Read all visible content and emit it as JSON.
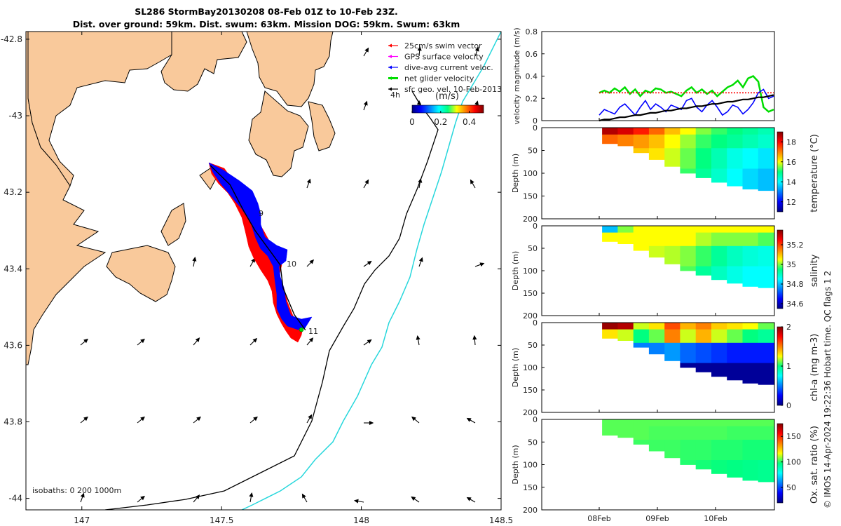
{
  "title_line1": "SL286 StormBay20130208 08-Feb 01Z to 10-Feb 23Z.",
  "title_line2": "Dist. over ground: 59km. Dist. swum: 63km. Mission DOG: 59km. Swum: 63km",
  "credit": "© IMOS 14-Apr-2024 19:22:36 Hobart time. QC flags 1  2",
  "chart_data": [
    {
      "type": "scatter",
      "name": "map",
      "xlim": [
        146.8,
        148.5
      ],
      "ylim": [
        -44.03,
        -42.78
      ],
      "x_ticks": [
        147,
        147.5,
        148,
        148.5
      ],
      "x_tick_labels": [
        "147",
        "147.5",
        "148",
        "148.5"
      ],
      "y_ticks": [
        -42.8,
        -43,
        -43.2,
        -43.4,
        -43.6,
        -43.8,
        -44
      ],
      "y_tick_labels": [
        "-42.8",
        "-43",
        "43.2",
        "43.4",
        "43.6",
        "43.8",
        "-44"
      ],
      "legend": [
        {
          "label": "25cm/s swim vector",
          "color": "#ff0000"
        },
        {
          "label": "GPS surface velocity",
          "color": "#ff00ff"
        },
        {
          "label": "dive-avg current veloc.",
          "color": "#0000ff"
        },
        {
          "label": "net glider velocity",
          "color": "#00dd00"
        },
        {
          "label": "sfc geo. vel. 10-Feb-2013",
          "color": "#000000"
        }
      ],
      "legend_position": "top-right",
      "scale_label": "4h",
      "colorbar": {
        "label": "(m/s)",
        "ticks": [
          "0",
          "0.2",
          "0.4"
        ],
        "range": [
          0,
          0.5
        ]
      },
      "day_labels": [
        "9",
        "10",
        "11"
      ],
      "track_lonlat": [
        [
          147.46,
          -43.13
        ],
        [
          147.53,
          -43.18
        ],
        [
          147.58,
          -43.25
        ],
        [
          147.62,
          -43.3
        ],
        [
          147.67,
          -43.35
        ],
        [
          147.71,
          -43.39
        ],
        [
          147.72,
          -43.45
        ],
        [
          147.76,
          -43.52
        ],
        [
          147.8,
          -43.56
        ]
      ],
      "isobath_label": "isobaths: 0   200  1000m",
      "land_color": "#f9c99b",
      "track_color": "#0000ff",
      "arrow_color": "#000000"
    },
    {
      "type": "line",
      "name": "velocity",
      "ylabel": "velocity magnitude (m/s)",
      "ylim": [
        0,
        0.8
      ],
      "y_ticks": [
        "0",
        "0.2",
        "0.4",
        "0.6",
        "0.8"
      ],
      "xlim_days": [
        0,
        3
      ],
      "x_tick_labels": [
        "08Feb",
        "09Feb",
        "10Feb"
      ],
      "series": [
        {
          "color": "#00dd00",
          "values": [
            0.25,
            0.27,
            0.25,
            0.29,
            0.26,
            0.3,
            0.24,
            0.28,
            0.22,
            0.27,
            0.25,
            0.29,
            0.28,
            0.25,
            0.26,
            0.24,
            0.22,
            0.27,
            0.3,
            0.25,
            0.28,
            0.24,
            0.27,
            0.22,
            0.26,
            0.3,
            0.32,
            0.36,
            0.3,
            0.38,
            0.4,
            0.35,
            0.12,
            0.08,
            0.1
          ]
        },
        {
          "color": "#ff0000",
          "values": [
            0.25,
            0.25,
            0.25,
            0.25,
            0.25,
            0.25,
            0.25,
            0.25,
            0.25,
            0.25,
            0.25,
            0.25,
            0.25,
            0.25,
            0.25,
            0.25,
            0.25,
            0.25,
            0.25,
            0.25,
            0.25,
            0.25,
            0.25,
            0.25,
            0.25,
            0.25,
            0.25,
            0.25,
            0.25,
            0.25,
            0.25,
            0.25,
            0.25,
            0.25,
            0.25
          ]
        },
        {
          "color": "#0000ff",
          "values": [
            0.05,
            0.1,
            0.08,
            0.06,
            0.12,
            0.15,
            0.1,
            0.05,
            0.12,
            0.18,
            0.1,
            0.15,
            0.12,
            0.08,
            0.14,
            0.12,
            0.1,
            0.18,
            0.2,
            0.12,
            0.08,
            0.14,
            0.18,
            0.12,
            0.05,
            0.08,
            0.14,
            0.12,
            0.06,
            0.1,
            0.16,
            0.25,
            0.28,
            0.2,
            0.22
          ]
        },
        {
          "color": "#000000",
          "values": [
            0.0,
            0.01,
            0.01,
            0.02,
            0.03,
            0.03,
            0.04,
            0.05,
            0.05,
            0.06,
            0.07,
            0.07,
            0.08,
            0.09,
            0.09,
            0.1,
            0.11,
            0.11,
            0.12,
            0.13,
            0.13,
            0.14,
            0.15,
            0.15,
            0.16,
            0.17,
            0.17,
            0.18,
            0.19,
            0.19,
            0.2,
            0.21,
            0.21,
            0.22,
            0.23
          ]
        }
      ]
    },
    {
      "type": "heatmap",
      "name": "temperature",
      "ylabel": "Depth (m)",
      "cbar_label": "temperature (°C)",
      "ylim": [
        0,
        200
      ],
      "y_ticks": [
        "0",
        "50",
        "100",
        "150",
        "200"
      ],
      "clim": [
        11,
        19
      ],
      "cbar_ticks": [
        "12",
        "14",
        "16",
        "18"
      ],
      "max_depth": [
        35,
        40,
        55,
        70,
        85,
        100,
        110,
        120,
        128,
        135,
        138
      ],
      "profile": [
        [
          18.6,
          18.3,
          17.8,
          17.2,
          16.5,
          16.0,
          15.5,
          15.2,
          15.0,
          14.8,
          14.6
        ],
        [
          17.2,
          17.0,
          16.8,
          16.5,
          16.0,
          15.6,
          15.2,
          15.0,
          14.8,
          14.6,
          14.4
        ],
        [
          16.8,
          16.6,
          16.4,
          16.2,
          15.8,
          15.4,
          15.0,
          14.6,
          14.2,
          14.0,
          13.8
        ],
        [
          16.6,
          16.4,
          16.3,
          16.1,
          15.8,
          15.2,
          14.8,
          14.4,
          14.0,
          13.7,
          13.5
        ]
      ]
    },
    {
      "type": "heatmap",
      "name": "salinity",
      "ylabel": "Depth (m)",
      "cbar_label": "salinity",
      "ylim": [
        0,
        200
      ],
      "y_ticks": [
        "0",
        "50",
        "100",
        "150",
        "200"
      ],
      "clim": [
        34.55,
        35.35
      ],
      "cbar_ticks": [
        "34.6",
        "34.8",
        "35",
        "35.2"
      ],
      "max_depth": [
        35,
        40,
        55,
        70,
        85,
        100,
        110,
        120,
        128,
        135,
        138
      ],
      "profile": [
        [
          34.8,
          35.0,
          35.05,
          35.05,
          35.05,
          35.05,
          35.05,
          35.05,
          35.05,
          35.05,
          35.05
        ],
        [
          35.05,
          35.05,
          35.05,
          35.05,
          35.05,
          35.05,
          35.02,
          35.0,
          35.0,
          35.0,
          34.98
        ],
        [
          35.05,
          35.05,
          35.05,
          35.03,
          35.02,
          35.0,
          34.97,
          34.93,
          34.9,
          34.88,
          34.87
        ],
        [
          35.05,
          35.05,
          35.05,
          35.02,
          35.0,
          34.98,
          34.93,
          34.9,
          34.87,
          34.85,
          34.85
        ]
      ]
    },
    {
      "type": "heatmap",
      "name": "chl-a",
      "ylabel": "Depth (m)",
      "cbar_label": "chl-a (mg m-3)",
      "ylim": [
        0,
        200
      ],
      "y_ticks": [
        "0",
        "50",
        "100",
        "150",
        "200"
      ],
      "clim": [
        0,
        2
      ],
      "cbar_ticks": [
        "0",
        "1",
        "2"
      ],
      "max_depth": [
        35,
        40,
        55,
        70,
        85,
        100,
        110,
        120,
        128,
        135,
        138
      ],
      "profile": [
        [
          1.95,
          1.9,
          1.2,
          1.3,
          1.6,
          1.4,
          1.5,
          1.35,
          1.3,
          1.25,
          1.1
        ],
        [
          1.3,
          1.2,
          1.0,
          1.1,
          1.5,
          1.2,
          1.4,
          1.2,
          1.1,
          1.0,
          0.95
        ],
        [
          0.7,
          0.6,
          0.5,
          0.5,
          0.55,
          0.45,
          0.4,
          0.35,
          0.3,
          0.3,
          0.3
        ],
        [
          0.3,
          0.2,
          0.15,
          0.1,
          0.1,
          0.05,
          0.05,
          0.05,
          0.05,
          0.05,
          0.05
        ]
      ]
    },
    {
      "type": "heatmap",
      "name": "oxygen",
      "ylabel": "Depth (m)",
      "cbar_label": "Ox. sat. ratio (%)",
      "ylim": [
        0,
        200
      ],
      "y_ticks": [
        "0",
        "50",
        "100",
        "150",
        "200"
      ],
      "clim": [
        20,
        175
      ],
      "cbar_ticks": [
        "50",
        "100",
        "150"
      ],
      "max_depth": [
        35,
        40,
        55,
        70,
        85,
        100,
        110,
        120,
        128,
        135,
        138
      ],
      "profile": [
        [
          104,
          104,
          104,
          104,
          104,
          104,
          104,
          104,
          104,
          104,
          104
        ],
        [
          104,
          104,
          104,
          103,
          103,
          103,
          103,
          103,
          102,
          102,
          102
        ],
        [
          103,
          103,
          102,
          102,
          102,
          101,
          101,
          100,
          100,
          99,
          99
        ],
        [
          102,
          102,
          101,
          101,
          100,
          100,
          99,
          98,
          97,
          96,
          95
        ]
      ]
    }
  ]
}
